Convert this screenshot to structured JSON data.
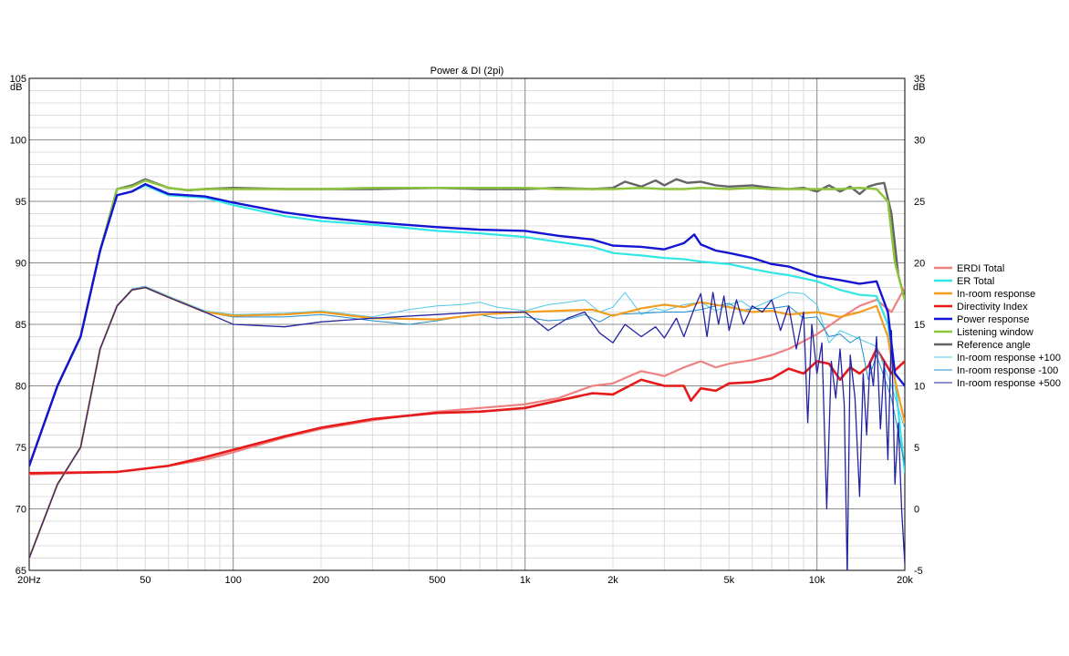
{
  "chart_data": {
    "type": "line",
    "title": "Power & DI (2pi)",
    "xscale": "log",
    "xlim": [
      20,
      20000
    ],
    "ylim": [
      65,
      105
    ],
    "y2lim": [
      -5,
      35
    ],
    "yunit": "dB",
    "y2unit": "dB",
    "grid": true,
    "legend_position": "right",
    "x_ticks": [
      {
        "v": 20,
        "label": "20Hz"
      },
      {
        "v": 50,
        "label": "50"
      },
      {
        "v": 100,
        "label": "100"
      },
      {
        "v": 200,
        "label": "200"
      },
      {
        "v": 500,
        "label": "500"
      },
      {
        "v": 1000,
        "label": "1k"
      },
      {
        "v": 2000,
        "label": "2k"
      },
      {
        "v": 5000,
        "label": "5k"
      },
      {
        "v": 10000,
        "label": "10k"
      },
      {
        "v": 20000,
        "label": "20k"
      }
    ],
    "y_ticks": [
      65,
      70,
      75,
      80,
      85,
      90,
      95,
      100,
      105
    ],
    "y2_ticks": [
      -5,
      0,
      5,
      10,
      15,
      20,
      25,
      30,
      35
    ],
    "colors": {
      "major_grid": "#8c8c8c",
      "minor_grid": "#dcdcdc"
    },
    "series": [
      {
        "name": "ERDI Total",
        "color": "#f08080",
        "width": 2.2,
        "axis": "right",
        "x": [
          20,
          40,
          60,
          80,
          100,
          150,
          200,
          300,
          500,
          700,
          1000,
          1300,
          1700,
          2000,
          2500,
          3000,
          3500,
          4000,
          4500,
          5000,
          6000,
          7000,
          8000,
          10000,
          12000,
          14000,
          16000,
          18000,
          20000
        ],
        "y": [
          2.8,
          3.0,
          3.5,
          4.0,
          4.6,
          5.8,
          6.5,
          7.2,
          7.9,
          8.2,
          8.5,
          9.0,
          10.0,
          10.2,
          11.2,
          10.8,
          11.5,
          12.0,
          11.5,
          11.8,
          12.1,
          12.5,
          13.0,
          14.2,
          15.5,
          16.5,
          17.0,
          16.0,
          18.0
        ]
      },
      {
        "name": "ER Total",
        "color": "#33e6e6",
        "width": 2.2,
        "axis": "left",
        "x": [
          20,
          25,
          30,
          35,
          40,
          45,
          50,
          60,
          80,
          100,
          150,
          200,
          300,
          500,
          700,
          1000,
          1300,
          1700,
          2000,
          2500,
          3000,
          3500,
          4000,
          5000,
          6000,
          7000,
          8000,
          10000,
          12000,
          14000,
          16000,
          17500,
          18500,
          20000
        ],
        "y": [
          73.5,
          80,
          84,
          91,
          95.5,
          95.8,
          96.3,
          95.5,
          95.3,
          94.7,
          93.8,
          93.4,
          93.1,
          92.6,
          92.4,
          92.1,
          91.7,
          91.3,
          90.8,
          90.6,
          90.4,
          90.3,
          90.1,
          89.9,
          89.5,
          89.2,
          89.0,
          88.5,
          87.8,
          87.4,
          87.3,
          85.0,
          80.5,
          73.0
        ]
      },
      {
        "name": "In-room response",
        "color": "#f39c1e",
        "width": 2.2,
        "axis": "left",
        "x": [
          20,
          25,
          30,
          35,
          40,
          45,
          50,
          60,
          80,
          100,
          150,
          200,
          300,
          500,
          700,
          1000,
          1300,
          1700,
          2000,
          2500,
          3000,
          3500,
          4000,
          5000,
          6000,
          7000,
          8000,
          10000,
          12000,
          14000,
          16000,
          17500,
          18500,
          20000
        ],
        "y": [
          66,
          72,
          75,
          83,
          86.5,
          87.8,
          88.0,
          87.2,
          86.0,
          85.7,
          85.8,
          86.0,
          85.5,
          85.4,
          85.8,
          86.0,
          86.1,
          86.2,
          85.7,
          86.3,
          86.6,
          86.4,
          86.8,
          86.4,
          86.0,
          86.1,
          85.8,
          86.0,
          85.6,
          86.0,
          86.5,
          84.0,
          80.5,
          77.0
        ]
      },
      {
        "name": "Directivity Index",
        "color": "#e61a1a",
        "width": 2.6,
        "axis": "right",
        "x": [
          20,
          40,
          60,
          80,
          100,
          150,
          200,
          300,
          500,
          700,
          1000,
          1300,
          1700,
          2000,
          2500,
          3000,
          3500,
          3700,
          4000,
          4500,
          5000,
          6000,
          7000,
          8000,
          9000,
          10000,
          11000,
          12000,
          13000,
          14000,
          15000,
          16000,
          17000,
          18000,
          20000
        ],
        "y": [
          2.9,
          3.0,
          3.5,
          4.2,
          4.8,
          5.9,
          6.6,
          7.3,
          7.8,
          7.9,
          8.2,
          8.8,
          9.4,
          9.3,
          10.5,
          10.0,
          10.0,
          8.8,
          9.8,
          9.6,
          10.2,
          10.3,
          10.6,
          11.4,
          11.0,
          12.0,
          11.8,
          10.5,
          11.5,
          11.0,
          11.6,
          13.0,
          12.0,
          11.0,
          12.0
        ]
      },
      {
        "name": "Power response",
        "color": "#1414d2",
        "width": 2.4,
        "axis": "left",
        "x": [
          20,
          25,
          30,
          35,
          40,
          45,
          50,
          60,
          80,
          100,
          150,
          200,
          300,
          500,
          700,
          1000,
          1300,
          1700,
          2000,
          2500,
          3000,
          3500,
          3800,
          4000,
          4500,
          5000,
          6000,
          7000,
          8000,
          10000,
          12000,
          14000,
          16000,
          17500,
          18500,
          20000
        ],
        "y": [
          73.5,
          80,
          84,
          91,
          95.5,
          95.8,
          96.4,
          95.6,
          95.4,
          94.9,
          94.1,
          93.7,
          93.3,
          92.9,
          92.7,
          92.6,
          92.2,
          91.9,
          91.4,
          91.3,
          91.1,
          91.6,
          92.3,
          91.5,
          91.0,
          90.8,
          90.4,
          89.9,
          89.7,
          88.9,
          88.6,
          88.3,
          88.5,
          86.0,
          81.0,
          80.0
        ]
      },
      {
        "name": "Listening window",
        "color": "#8cc43c",
        "width": 2.4,
        "axis": "left",
        "x": [
          20,
          25,
          30,
          35,
          40,
          45,
          50,
          60,
          70,
          80,
          100,
          150,
          200,
          300,
          500,
          700,
          1000,
          1300,
          1700,
          2000,
          2500,
          3000,
          3500,
          4000,
          5000,
          6000,
          7000,
          8000,
          10000,
          12000,
          14000,
          16000,
          17500,
          18500,
          20000
        ],
        "y": [
          73.5,
          80,
          84,
          91,
          96,
          96.2,
          96.7,
          96.1,
          95.9,
          96.0,
          96.0,
          96.0,
          96.0,
          96.1,
          96.1,
          96.1,
          96.1,
          96.0,
          96.0,
          96.0,
          96.1,
          96.0,
          96.0,
          96.1,
          96.0,
          96.1,
          96.0,
          96.0,
          96.0,
          96.0,
          96.1,
          96.0,
          95.0,
          90.0,
          87.0
        ]
      },
      {
        "name": "Reference angle",
        "color": "#646464",
        "width": 2.4,
        "axis": "left",
        "x": [
          20,
          25,
          30,
          35,
          40,
          45,
          50,
          60,
          70,
          80,
          100,
          150,
          200,
          300,
          500,
          700,
          1000,
          1300,
          1700,
          2000,
          2200,
          2500,
          2800,
          3000,
          3300,
          3600,
          4000,
          4500,
          5000,
          6000,
          7000,
          8000,
          9000,
          10000,
          11000,
          12000,
          13000,
          14000,
          15000,
          16000,
          17000,
          18000,
          19000,
          20000
        ],
        "y": [
          73.5,
          80,
          84,
          91,
          96,
          96.3,
          96.8,
          96.1,
          95.9,
          96.0,
          96.1,
          96.0,
          96.0,
          96.0,
          96.1,
          96.0,
          96.0,
          96.1,
          96.0,
          96.1,
          96.6,
          96.2,
          96.7,
          96.3,
          96.8,
          96.5,
          96.6,
          96.3,
          96.2,
          96.3,
          96.1,
          96.0,
          96.1,
          95.8,
          96.3,
          95.8,
          96.2,
          95.6,
          96.2,
          96.4,
          96.5,
          94.0,
          89.0,
          87.0
        ]
      },
      {
        "name": "In-room response +100",
        "color": "#4fc8e8",
        "width": 1,
        "axis": "left",
        "x": [
          20,
          25,
          30,
          35,
          40,
          45,
          50,
          60,
          80,
          100,
          150,
          200,
          300,
          400,
          500,
          600,
          700,
          800,
          1000,
          1200,
          1400,
          1600,
          1800,
          2000,
          2200,
          2500,
          2800,
          3000,
          3500,
          4000,
          4500,
          5000,
          5500,
          6000,
          7000,
          8000,
          9000,
          10000,
          11000,
          12000,
          14000,
          16000,
          18000,
          20000
        ],
        "y": [
          66,
          72,
          75,
          83,
          86.5,
          87.9,
          88.1,
          87.3,
          86.1,
          85.8,
          85.9,
          86.1,
          85.6,
          86.2,
          86.5,
          86.6,
          86.8,
          86.4,
          86.1,
          86.6,
          86.8,
          87.0,
          86.0,
          86.4,
          87.6,
          85.8,
          86.3,
          86.1,
          86.6,
          86.8,
          86.1,
          86.6,
          86.9,
          86.3,
          87.0,
          87.6,
          87.5,
          86.6,
          83.5,
          84.5,
          83.8,
          83.2,
          80.0,
          76.5
        ]
      },
      {
        "name": "In-room response -100",
        "color": "#1e8ccd",
        "width": 1,
        "axis": "left",
        "x": [
          20,
          25,
          30,
          35,
          40,
          45,
          50,
          60,
          80,
          100,
          150,
          200,
          300,
          400,
          500,
          600,
          700,
          800,
          1000,
          1200,
          1400,
          1600,
          1800,
          2000,
          2500,
          3000,
          3500,
          4000,
          4500,
          5000,
          5500,
          6000,
          7000,
          8000,
          9000,
          10000,
          11000,
          12000,
          13000,
          14000,
          15000,
          16000,
          18000,
          20000
        ],
        "y": [
          66,
          72,
          75,
          83,
          86.5,
          87.8,
          88.0,
          87.2,
          86.0,
          85.6,
          85.6,
          85.8,
          85.3,
          85.0,
          85.3,
          85.6,
          85.8,
          85.5,
          85.6,
          85.3,
          85.4,
          85.8,
          85.2,
          85.8,
          85.9,
          86.0,
          86.0,
          86.2,
          86.5,
          86.7,
          86.1,
          86.3,
          86.3,
          86.5,
          85.5,
          85.6,
          84.0,
          84.2,
          83.5,
          84.0,
          80.5,
          82.5,
          79.0,
          73.5
        ]
      },
      {
        "name": "In-room response +500",
        "color": "#2323a0",
        "width": 1.3,
        "axis": "left",
        "x": [
          20,
          25,
          30,
          35,
          40,
          45,
          50,
          60,
          80,
          100,
          150,
          200,
          300,
          500,
          700,
          1000,
          1200,
          1400,
          1600,
          1800,
          2000,
          2200,
          2500,
          2800,
          3000,
          3300,
          3500,
          3800,
          4000,
          4200,
          4400,
          4600,
          4800,
          5000,
          5300,
          5600,
          6000,
          6500,
          7000,
          7500,
          8000,
          8500,
          9000,
          9300,
          9600,
          10000,
          10400,
          10800,
          11200,
          11600,
          12000,
          12400,
          12700,
          13000,
          13500,
          14000,
          14400,
          14800,
          15200,
          15600,
          16000,
          16500,
          17000,
          17500,
          18000,
          18500,
          19000,
          19500,
          20000
        ],
        "y": [
          66,
          72,
          75,
          83,
          86.5,
          87.8,
          88.0,
          87.2,
          86.0,
          85.0,
          84.8,
          85.2,
          85.5,
          85.8,
          86.0,
          86.0,
          84.5,
          85.5,
          86.0,
          84.3,
          83.5,
          85.0,
          84.0,
          84.8,
          83.9,
          85.5,
          84.0,
          86.3,
          87.5,
          84.0,
          87.6,
          85.0,
          87.3,
          84.5,
          87.0,
          85.0,
          86.5,
          86.0,
          87.0,
          84.5,
          86.5,
          83.0,
          86.0,
          77.0,
          85.0,
          81.0,
          83.5,
          70.0,
          82.0,
          79.0,
          83.0,
          78.5,
          64.5,
          82.5,
          79.0,
          71.0,
          81.0,
          76.0,
          82.0,
          80.0,
          84.0,
          76.5,
          82.0,
          74.0,
          84.5,
          72.0,
          77.0,
          70.0,
          65.5
        ]
      }
    ]
  }
}
